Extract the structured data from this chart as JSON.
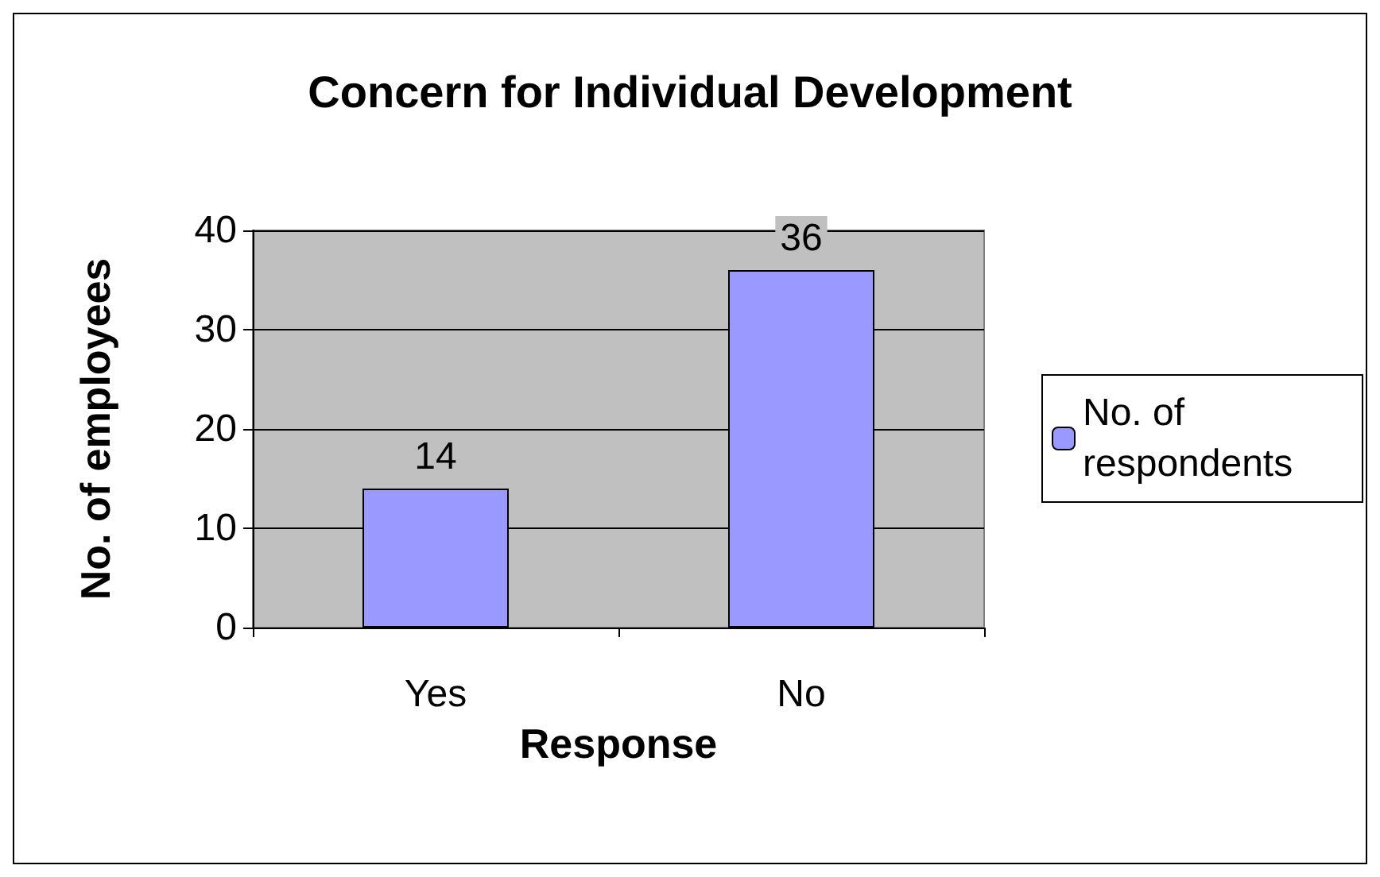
{
  "chart_data": {
    "type": "bar",
    "title": "Concern for Individual Development",
    "xlabel": "Response",
    "ylabel": "No. of employees",
    "categories": [
      "Yes",
      "No"
    ],
    "series": [
      {
        "name": "No. of respondents",
        "color": "#9999ff",
        "values": [
          14,
          36
        ]
      }
    ],
    "ylim": [
      0,
      40
    ],
    "yticks": [
      0,
      10,
      20,
      30,
      40
    ],
    "grid": "y",
    "legend": "right",
    "data_labels": true
  }
}
